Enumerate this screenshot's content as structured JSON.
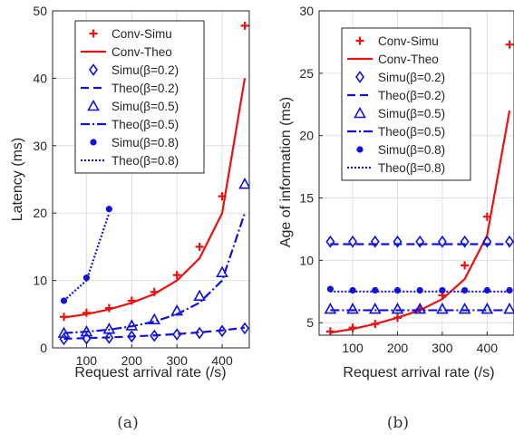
{
  "chart_data": [
    {
      "type": "line",
      "caption": "(a)",
      "xlabel": "Request arrival rate (/s)",
      "ylabel": "Latency (ms)",
      "xlim": [
        25,
        460
      ],
      "ylim": [
        0,
        50
      ],
      "x_ticks": [
        100,
        200,
        300,
        400
      ],
      "x_tick_labels": [
        "100",
        "200",
        "300",
        "400"
      ],
      "y_ticks": [
        0,
        10,
        20,
        30,
        40,
        50
      ],
      "y_tick_labels": [
        "0",
        "10",
        "20",
        "30",
        "40",
        "50"
      ],
      "grid": true,
      "legend_position": "top-left",
      "series": [
        {
          "name": "Conv-Simu",
          "kind": "marker",
          "marker": "plus",
          "color": "#ee1111",
          "x": [
            50,
            100,
            150,
            200,
            250,
            300,
            350,
            400,
            450
          ],
          "y": [
            4.6,
            5.2,
            5.9,
            7.0,
            8.3,
            10.8,
            15.0,
            22.5,
            47.8
          ]
        },
        {
          "name": "Conv-Theo",
          "kind": "line",
          "dash": "solid",
          "color": "#ee1111",
          "x": [
            50,
            100,
            150,
            200,
            250,
            300,
            350,
            400,
            450
          ],
          "y": [
            4.5,
            5.0,
            5.7,
            6.7,
            8.0,
            10.0,
            13.3,
            20.0,
            40.0
          ]
        },
        {
          "name": "Simu(β=0.2)",
          "kind": "marker",
          "marker": "diamond",
          "color": "#1111dd",
          "x": [
            50,
            100,
            150,
            200,
            250,
            300,
            350,
            400,
            450
          ],
          "y": [
            1.3,
            1.4,
            1.5,
            1.7,
            1.8,
            2.0,
            2.2,
            2.5,
            2.9
          ]
        },
        {
          "name": "Theo(β=0.2)",
          "kind": "line",
          "dash": "dash",
          "color": "#1111dd",
          "x": [
            50,
            100,
            150,
            200,
            250,
            300,
            350,
            400,
            450
          ],
          "y": [
            1.35,
            1.45,
            1.55,
            1.7,
            1.85,
            2.05,
            2.3,
            2.6,
            3.0
          ]
        },
        {
          "name": "Simu(β=0.5)",
          "kind": "marker",
          "marker": "triangle",
          "color": "#1111dd",
          "x": [
            50,
            100,
            150,
            200,
            250,
            300,
            350,
            400,
            450
          ],
          "y": [
            2.2,
            2.4,
            2.8,
            3.3,
            4.2,
            5.5,
            7.7,
            11.2,
            24.3
          ]
        },
        {
          "name": "Theo(β=0.5)",
          "kind": "line",
          "dash": "dashdot",
          "color": "#1111dd",
          "x": [
            50,
            100,
            150,
            200,
            250,
            300,
            350,
            400,
            450
          ],
          "y": [
            2.2,
            2.4,
            2.7,
            3.2,
            3.9,
            5.0,
            6.7,
            10.0,
            20.0
          ]
        },
        {
          "name": "Simu(β=0.8)",
          "kind": "marker",
          "marker": "dot",
          "color": "#1111dd",
          "x": [
            50,
            100,
            150
          ],
          "y": [
            7.0,
            10.4,
            20.6
          ]
        },
        {
          "name": "Theo(β=0.8)",
          "kind": "line",
          "dash": "dot",
          "color": "#1111dd",
          "x": [
            50,
            100,
            150
          ],
          "y": [
            7.0,
            10.0,
            20.0
          ]
        }
      ]
    },
    {
      "type": "line",
      "caption": "(b)",
      "xlabel": "Request arrival rate (/s)",
      "ylabel": "Age of information (ms)",
      "xlim": [
        25,
        460
      ],
      "ylim": [
        4,
        30
      ],
      "x_ticks": [
        100,
        200,
        300,
        400
      ],
      "x_tick_labels": [
        "100",
        "200",
        "300",
        "400"
      ],
      "y_ticks": [
        5,
        10,
        15,
        20,
        25,
        30
      ],
      "y_tick_labels": [
        "5",
        "10",
        "15",
        "20",
        "25",
        "30"
      ],
      "grid": true,
      "legend_position": "top-left",
      "series": [
        {
          "name": "Conv-Simu",
          "kind": "marker",
          "marker": "plus",
          "color": "#ee1111",
          "x": [
            50,
            100,
            150,
            200,
            250,
            300,
            350,
            400,
            450
          ],
          "y": [
            4.3,
            4.6,
            4.9,
            5.4,
            6.1,
            7.2,
            9.6,
            13.5,
            27.3
          ]
        },
        {
          "name": "Conv-Theo",
          "kind": "line",
          "dash": "solid",
          "color": "#ee1111",
          "x": [
            50,
            100,
            150,
            200,
            250,
            300,
            350,
            400,
            450
          ],
          "y": [
            4.2,
            4.5,
            4.9,
            5.4,
            6.0,
            6.9,
            8.5,
            12.0,
            22.0
          ]
        },
        {
          "name": "Simu(β=0.2)",
          "kind": "marker",
          "marker": "diamond",
          "color": "#1111dd",
          "x": [
            50,
            100,
            150,
            200,
            250,
            300,
            350,
            400,
            450
          ],
          "y": [
            11.5,
            11.5,
            11.5,
            11.5,
            11.5,
            11.5,
            11.5,
            11.5,
            11.5
          ]
        },
        {
          "name": "Theo(β=0.2)",
          "kind": "line",
          "dash": "dash",
          "color": "#1111dd",
          "x": [
            50,
            100,
            150,
            200,
            250,
            300,
            350,
            400,
            450
          ],
          "y": [
            11.3,
            11.3,
            11.3,
            11.3,
            11.3,
            11.3,
            11.3,
            11.3,
            11.3
          ]
        },
        {
          "name": "Simu(β=0.5)",
          "kind": "marker",
          "marker": "triangle",
          "color": "#1111dd",
          "x": [
            50,
            100,
            150,
            200,
            250,
            300,
            350,
            400,
            450
          ],
          "y": [
            6.1,
            6.1,
            6.1,
            6.1,
            6.1,
            6.1,
            6.1,
            6.1,
            6.1
          ]
        },
        {
          "name": "Theo(β=0.5)",
          "kind": "line",
          "dash": "dashdot",
          "color": "#1111dd",
          "x": [
            50,
            100,
            150,
            200,
            250,
            300,
            350,
            400,
            450
          ],
          "y": [
            6.0,
            6.0,
            6.0,
            6.0,
            6.0,
            6.0,
            6.0,
            6.0,
            6.0
          ]
        },
        {
          "name": "Simu(β=0.8)",
          "kind": "marker",
          "marker": "dot",
          "color": "#1111dd",
          "x": [
            50,
            100,
            150,
            200,
            250,
            300,
            350,
            400,
            450
          ],
          "y": [
            7.7,
            7.6,
            7.6,
            7.6,
            7.6,
            7.6,
            7.6,
            7.6,
            7.6
          ]
        },
        {
          "name": "Theo(β=0.8)",
          "kind": "line",
          "dash": "dot",
          "color": "#1111dd",
          "x": [
            50,
            100,
            150,
            200,
            250,
            300,
            350,
            400,
            450
          ],
          "y": [
            7.5,
            7.5,
            7.5,
            7.5,
            7.5,
            7.5,
            7.5,
            7.5,
            7.5
          ]
        }
      ]
    }
  ]
}
